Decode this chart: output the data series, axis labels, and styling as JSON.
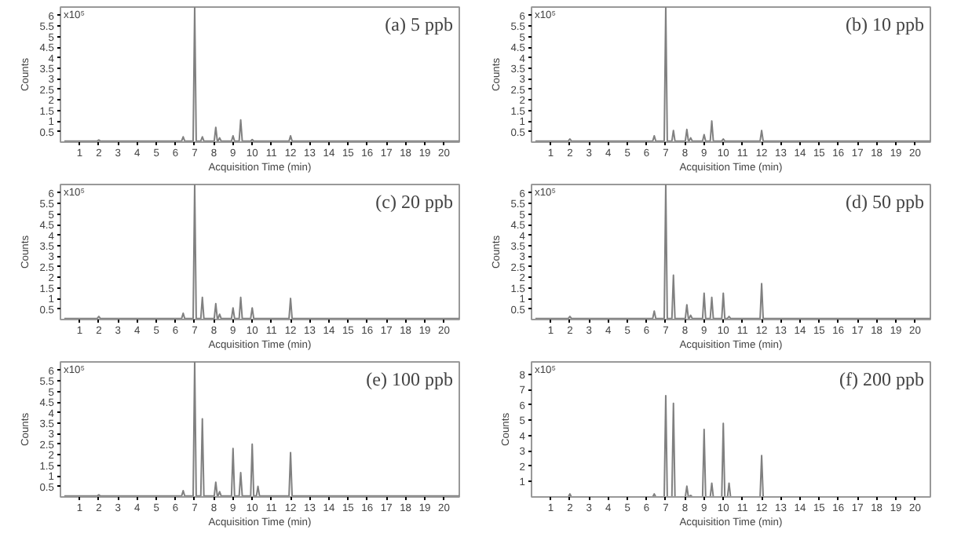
{
  "chart_data": [
    {
      "type": "line",
      "title": "(a) 5 ppb",
      "xlabel": "Acquisition Time (min)",
      "ylabel": "Counts",
      "annotations": [
        "x10⁵"
      ],
      "x": [
        0.2,
        1.92,
        2.0,
        2.08,
        6.32,
        6.4,
        6.48,
        6.92,
        7.0,
        7.08,
        7.32,
        7.4,
        7.48,
        8.02,
        8.1,
        8.18,
        8.22,
        8.3,
        8.38,
        8.92,
        9.0,
        9.08,
        9.32,
        9.4,
        9.48,
        9.92,
        10.0,
        10.08,
        10.22,
        10.3,
        10.38,
        11.92,
        12.0,
        12.08,
        20.8
      ],
      "series": [
        {
          "color": "#808080",
          "values": [
            0.05,
            0.05,
            0.1,
            0.05,
            0.05,
            0.25,
            0.05,
            0.05,
            6.4,
            0.05,
            0.05,
            0.25,
            0.05,
            0.05,
            0.7,
            0.05,
            0.05,
            0.2,
            0.05,
            0.05,
            0.3,
            0.05,
            0.05,
            1.05,
            0.05,
            0.05,
            0.12,
            0.05,
            0.05,
            0.05,
            0.05,
            0.05,
            0.3,
            0.05,
            0.05
          ]
        }
      ],
      "xlim": [
        0,
        20.8
      ],
      "ylim": [
        0,
        6.4
      ],
      "xticks": [
        1,
        2,
        3,
        4,
        5,
        6,
        7,
        8,
        9,
        10,
        11,
        12,
        13,
        14,
        15,
        16,
        17,
        18,
        19,
        20
      ],
      "yticks": [
        0.5,
        1,
        1.5,
        2,
        2.5,
        3,
        3.5,
        4,
        4.5,
        5,
        5.5,
        6
      ],
      "grid": false
    },
    {
      "type": "line",
      "title": "(b) 10 ppb",
      "xlabel": "Acquisition Time (min)",
      "ylabel": "Counts",
      "annotations": [
        "x10⁵"
      ],
      "x": [
        0.2,
        1.92,
        2.0,
        2.08,
        6.32,
        6.4,
        6.48,
        6.92,
        7.0,
        7.08,
        7.32,
        7.4,
        7.48,
        8.02,
        8.1,
        8.18,
        8.22,
        8.3,
        8.38,
        8.92,
        9.0,
        9.08,
        9.32,
        9.4,
        9.48,
        9.92,
        10.0,
        10.08,
        10.22,
        10.3,
        10.38,
        11.92,
        12.0,
        12.08,
        20.8
      ],
      "series": [
        {
          "color": "#808080",
          "values": [
            0.05,
            0.05,
            0.15,
            0.05,
            0.05,
            0.3,
            0.05,
            0.05,
            6.4,
            0.05,
            0.05,
            0.55,
            0.05,
            0.05,
            0.6,
            0.05,
            0.05,
            0.2,
            0.05,
            0.05,
            0.35,
            0.05,
            0.05,
            1.0,
            0.05,
            0.05,
            0.15,
            0.05,
            0.05,
            0.05,
            0.05,
            0.05,
            0.55,
            0.05,
            0.05
          ]
        }
      ],
      "xlim": [
        0,
        20.8
      ],
      "ylim": [
        0,
        6.4
      ],
      "xticks": [
        1,
        2,
        3,
        4,
        5,
        6,
        7,
        8,
        9,
        10,
        11,
        12,
        13,
        14,
        15,
        16,
        17,
        18,
        19,
        20
      ],
      "yticks": [
        0.5,
        1,
        1.5,
        2,
        2.5,
        3,
        3.5,
        4,
        4.5,
        5,
        5.5,
        6
      ],
      "grid": false
    },
    {
      "type": "line",
      "title": "(c) 20 ppb",
      "xlabel": "Acquisition Time (min)",
      "ylabel": "Counts",
      "annotations": [
        "x10⁵"
      ],
      "x": [
        0.2,
        1.92,
        2.0,
        2.08,
        6.32,
        6.4,
        6.48,
        6.92,
        7.0,
        7.08,
        7.32,
        7.4,
        7.48,
        8.02,
        8.1,
        8.18,
        8.22,
        8.3,
        8.38,
        8.92,
        9.0,
        9.08,
        9.32,
        9.4,
        9.48,
        9.92,
        10.0,
        10.08,
        10.22,
        10.3,
        10.38,
        11.92,
        12.0,
        12.08,
        20.8
      ],
      "series": [
        {
          "color": "#808080",
          "values": [
            0.05,
            0.05,
            0.15,
            0.05,
            0.05,
            0.3,
            0.05,
            0.05,
            6.4,
            0.05,
            0.05,
            1.05,
            0.05,
            0.05,
            0.75,
            0.05,
            0.05,
            0.25,
            0.05,
            0.05,
            0.55,
            0.05,
            0.05,
            1.05,
            0.05,
            0.05,
            0.55,
            0.05,
            0.05,
            0.05,
            0.05,
            0.05,
            1.0,
            0.05,
            0.05
          ]
        }
      ],
      "xlim": [
        0,
        20.8
      ],
      "ylim": [
        0,
        6.4
      ],
      "xticks": [
        1,
        2,
        3,
        4,
        5,
        6,
        7,
        8,
        9,
        10,
        11,
        12,
        13,
        14,
        15,
        16,
        17,
        18,
        19,
        20
      ],
      "yticks": [
        0.5,
        1,
        1.5,
        2,
        2.5,
        3,
        3.5,
        4,
        4.5,
        5,
        5.5,
        6
      ],
      "grid": false
    },
    {
      "type": "line",
      "title": "(d) 50 ppb",
      "xlabel": "Acquisition Time (min)",
      "ylabel": "Counts",
      "annotations": [
        "x10⁵"
      ],
      "x": [
        0.2,
        1.92,
        2.0,
        2.08,
        6.32,
        6.4,
        6.48,
        6.92,
        7.0,
        7.08,
        7.32,
        7.4,
        7.48,
        8.02,
        8.1,
        8.18,
        8.22,
        8.3,
        8.38,
        8.92,
        9.0,
        9.08,
        9.32,
        9.4,
        9.48,
        9.92,
        10.0,
        10.08,
        10.22,
        10.3,
        10.38,
        11.92,
        12.0,
        12.08,
        20.8
      ],
      "series": [
        {
          "color": "#808080",
          "values": [
            0.05,
            0.05,
            0.15,
            0.05,
            0.05,
            0.4,
            0.05,
            0.05,
            6.4,
            0.05,
            0.05,
            2.1,
            0.05,
            0.05,
            0.7,
            0.05,
            0.05,
            0.2,
            0.05,
            0.05,
            1.25,
            0.05,
            0.05,
            1.05,
            0.05,
            0.05,
            1.25,
            0.05,
            0.05,
            0.15,
            0.05,
            0.05,
            1.7,
            0.05,
            0.05
          ]
        }
      ],
      "xlim": [
        0,
        20.8
      ],
      "ylim": [
        0,
        6.4
      ],
      "xticks": [
        1,
        2,
        3,
        4,
        5,
        6,
        7,
        8,
        9,
        10,
        11,
        12,
        13,
        14,
        15,
        16,
        17,
        18,
        19,
        20
      ],
      "yticks": [
        0.5,
        1,
        1.5,
        2,
        2.5,
        3,
        3.5,
        4,
        4.5,
        5,
        5.5,
        6
      ],
      "grid": false
    },
    {
      "type": "line",
      "title": "(e) 100 ppb",
      "xlabel": "Acquisition Time (min)",
      "ylabel": "Counts",
      "annotations": [
        "x10⁵"
      ],
      "x": [
        0.2,
        1.92,
        2.0,
        2.08,
        6.32,
        6.4,
        6.48,
        6.92,
        7.0,
        7.08,
        7.32,
        7.4,
        7.48,
        8.02,
        8.1,
        8.18,
        8.22,
        8.3,
        8.38,
        8.92,
        9.0,
        9.08,
        9.32,
        9.4,
        9.48,
        9.92,
        10.0,
        10.08,
        10.22,
        10.3,
        10.38,
        11.92,
        12.0,
        12.08,
        20.8
      ],
      "series": [
        {
          "color": "#808080",
          "values": [
            0.05,
            0.05,
            0.1,
            0.05,
            0.05,
            0.3,
            0.05,
            0.05,
            6.4,
            0.05,
            0.05,
            3.7,
            0.05,
            0.05,
            0.7,
            0.05,
            0.05,
            0.25,
            0.05,
            0.05,
            2.3,
            0.05,
            0.05,
            1.15,
            0.05,
            0.05,
            2.5,
            0.05,
            0.05,
            0.5,
            0.05,
            0.05,
            2.1,
            0.05,
            0.05
          ]
        }
      ],
      "xlim": [
        0,
        20.8
      ],
      "ylim": [
        0,
        6.4
      ],
      "xticks": [
        1,
        2,
        3,
        4,
        5,
        6,
        7,
        8,
        9,
        10,
        11,
        12,
        13,
        14,
        15,
        16,
        17,
        18,
        19,
        20
      ],
      "yticks": [
        0.5,
        1,
        1.5,
        2,
        2.5,
        3,
        3.5,
        4,
        4.5,
        5,
        5.5,
        6
      ],
      "grid": false
    },
    {
      "type": "line",
      "title": "(f) 200 ppb",
      "xlabel": "Acquisition Time (min)",
      "ylabel": "Counts",
      "annotations": [
        "x10⁵"
      ],
      "x": [
        0.2,
        1.92,
        2.0,
        2.08,
        6.32,
        6.4,
        6.48,
        6.92,
        7.0,
        7.08,
        7.32,
        7.4,
        7.48,
        8.02,
        8.1,
        8.18,
        8.22,
        8.3,
        8.38,
        8.92,
        9.0,
        9.08,
        9.32,
        9.4,
        9.48,
        9.92,
        10.0,
        10.08,
        10.22,
        10.3,
        10.38,
        11.92,
        12.0,
        12.08,
        20.8
      ],
      "series": [
        {
          "color": "#808080",
          "values": [
            0,
            0,
            0.2,
            0,
            0,
            0.2,
            0,
            0,
            6.6,
            0,
            0,
            6.1,
            0,
            0,
            0.7,
            0,
            0,
            0.1,
            0,
            0,
            4.4,
            0,
            0,
            0.9,
            0,
            0,
            4.8,
            0,
            0,
            0.9,
            0,
            0,
            2.7,
            0,
            0
          ]
        }
      ],
      "xlim": [
        0,
        20.8
      ],
      "ylim": [
        0,
        8.8
      ],
      "xticks": [
        1,
        2,
        3,
        4,
        5,
        6,
        7,
        8,
        9,
        10,
        11,
        12,
        13,
        14,
        15,
        16,
        17,
        18,
        19,
        20
      ],
      "yticks": [
        1,
        2,
        3,
        4,
        5,
        6,
        7,
        8
      ],
      "grid": false
    }
  ]
}
